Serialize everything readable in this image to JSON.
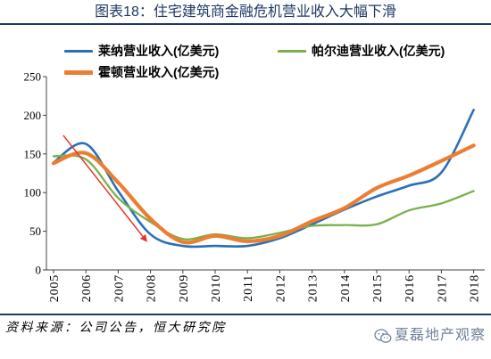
{
  "source": "资料来源：公司公告，恒大研究院",
  "watermark": {
    "text": "夏磊地产观察",
    "icon": "wechat-icon",
    "color": "#70829b"
  },
  "theme": {
    "title_color": "#1f3864",
    "rule_color": "#1f3864",
    "axis_color": "#404040"
  },
  "chart_data": {
    "type": "line",
    "title": "图表18：住宅建筑商金融危机营业收入大幅下滑",
    "categories": [
      "2005",
      "2006",
      "2007",
      "2008",
      "2009",
      "2010",
      "2011",
      "2012",
      "2013",
      "2014",
      "2015",
      "2016",
      "2017",
      "2018"
    ],
    "ylim": [
      0,
      250
    ],
    "yticks": [
      0,
      50,
      100,
      150,
      200,
      250
    ],
    "grid": false,
    "smooth": true,
    "legend": "top-left",
    "series": [
      {
        "name": "莱纳营业收入(亿美元)",
        "color": "#2a70b8",
        "values": [
          139,
          163,
          102,
          46,
          31,
          31,
          31,
          41,
          59,
          78,
          95,
          109,
          126,
          207
        ]
      },
      {
        "name": "帕尔迪营业收入(亿美元)",
        "color": "#79b04a",
        "values": [
          147,
          143,
          93,
          62,
          40,
          46,
          41,
          48,
          57,
          58,
          59,
          77,
          86,
          102
        ]
      },
      {
        "name": "霍顿营业收入(亿美元)",
        "color": "#ed7d31",
        "values": [
          138,
          151,
          113,
          66,
          36,
          44,
          37,
          44,
          63,
          80,
          106,
          122,
          141,
          161
        ]
      }
    ],
    "annotations": [
      {
        "type": "arrow",
        "color": "#e8322b",
        "from": [
          2005.3,
          174
        ],
        "to": [
          2007.9,
          36
        ]
      }
    ]
  }
}
